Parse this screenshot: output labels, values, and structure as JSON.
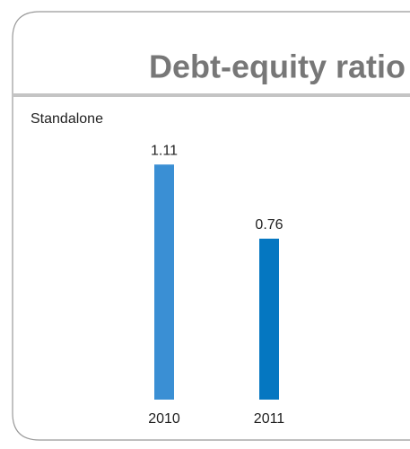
{
  "chart_data": {
    "type": "bar",
    "title": "Debt-equity ratio",
    "subtitle": "Standalone",
    "categories": [
      "2010",
      "2011"
    ],
    "values": [
      1.11,
      0.76
    ],
    "colors": [
      "#3a8fd4",
      "#0577c1"
    ],
    "ylim": [
      0,
      1.2
    ]
  }
}
